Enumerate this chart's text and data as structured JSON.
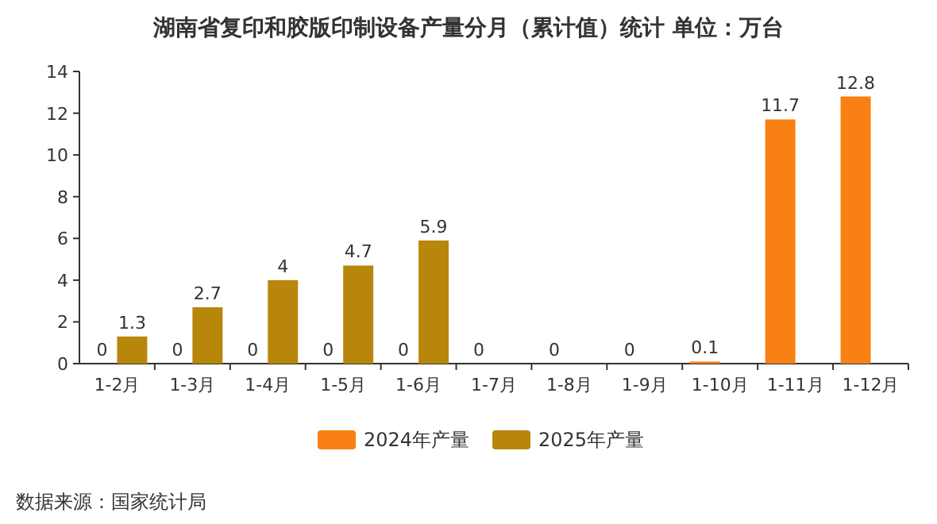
{
  "chart_data": {
    "type": "bar",
    "title": "湖南省复印和胶版印制设备产量分月（累计值）统计  单位：万台",
    "categories": [
      "1-2月",
      "1-3月",
      "1-4月",
      "1-5月",
      "1-6月",
      "1-7月",
      "1-8月",
      "1-9月",
      "1-10月",
      "1-11月",
      "1-12月"
    ],
    "series": [
      {
        "name": "2024年产量",
        "color": "#f98012",
        "values": [
          0,
          0,
          0,
          0,
          0,
          0,
          0,
          0,
          0.1,
          11.7,
          12.8
        ]
      },
      {
        "name": "2025年产量",
        "color": "#b8860b",
        "values": [
          1.3,
          2.7,
          4,
          4.7,
          5.9,
          null,
          null,
          null,
          null,
          null,
          null
        ]
      }
    ],
    "ylim": [
      0,
      14
    ],
    "yticks": [
      0,
      2,
      4,
      6,
      8,
      10,
      12,
      14
    ],
    "data_labels": true,
    "legend": "bottom",
    "annotations": [
      "数据来源：国家统计局"
    ]
  }
}
